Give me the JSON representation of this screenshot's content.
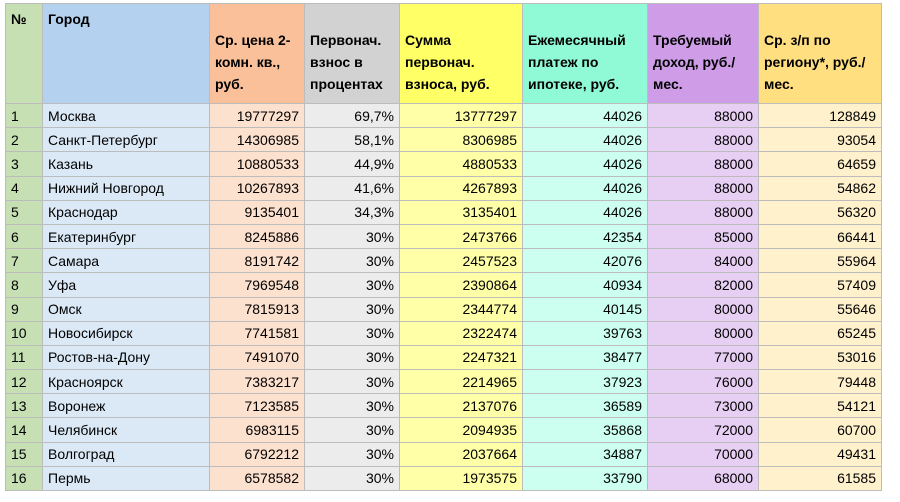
{
  "table": {
    "headers": [
      {
        "text": "№"
      },
      {
        "text": "Город"
      },
      {
        "text": "Ср. цена 2-комн. кв., руб."
      },
      {
        "text": "Первонач. взнос в процентах"
      },
      {
        "text": "Сумма первонач. взноса, руб."
      },
      {
        "text": "Ежемесячный платеж по ипотеке, руб."
      },
      {
        "text": "Требуемый доход, руб./мес."
      },
      {
        "text": "Ср. з/п по региону*, руб./мес."
      }
    ],
    "rows": [
      [
        "1",
        "Москва",
        "19777297",
        "69,7%",
        "13777297",
        "44026",
        "88000",
        "128849"
      ],
      [
        "2",
        "Санкт-Петербург",
        "14306985",
        "58,1%",
        "8306985",
        "44026",
        "88000",
        "93054"
      ],
      [
        "3",
        "Казань",
        "10880533",
        "44,9%",
        "4880533",
        "44026",
        "88000",
        "64659"
      ],
      [
        "4",
        "Нижний Новгород",
        "10267893",
        "41,6%",
        "4267893",
        "44026",
        "88000",
        "54862"
      ],
      [
        "5",
        "Краснодар",
        "9135401",
        "34,3%",
        "3135401",
        "44026",
        "88000",
        "56320"
      ],
      [
        "6",
        "Екатеринбург",
        "8245886",
        "30%",
        "2473766",
        "42354",
        "85000",
        "66441"
      ],
      [
        "7",
        "Самара",
        "8191742",
        "30%",
        "2457523",
        "42076",
        "84000",
        "55964"
      ],
      [
        "8",
        "Уфа",
        "7969548",
        "30%",
        "2390864",
        "40934",
        "82000",
        "57409"
      ],
      [
        "9",
        "Омск",
        "7815913",
        "30%",
        "2344774",
        "40145",
        "80000",
        "55646"
      ],
      [
        "10",
        "Новосибирск",
        "7741581",
        "30%",
        "2322474",
        "39763",
        "80000",
        "65245"
      ],
      [
        "11",
        "Ростов-на-Дону",
        "7491070",
        "30%",
        "2247321",
        "38477",
        "77000",
        "53016"
      ],
      [
        "12",
        "Красноярск",
        "7383217",
        "30%",
        "2214965",
        "37923",
        "76000",
        "79448"
      ],
      [
        "13",
        "Воронеж",
        "7123585",
        "30%",
        "2137076",
        "36589",
        "73000",
        "54121"
      ],
      [
        "14",
        "Челябинск",
        "6983115",
        "30%",
        "2094935",
        "35868",
        "72000",
        "60700"
      ],
      [
        "15",
        "Волгоград",
        "6792212",
        "30%",
        "2037664",
        "34887",
        "70000",
        "49431"
      ],
      [
        "16",
        "Пермь",
        "6578582",
        "30%",
        "1973575",
        "33790",
        "68000",
        "61585"
      ]
    ]
  }
}
